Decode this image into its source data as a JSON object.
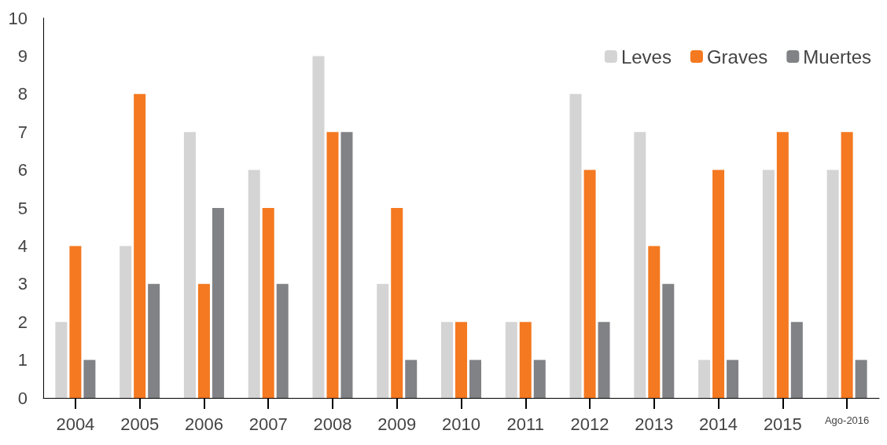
{
  "chart_data": {
    "type": "bar",
    "categories": [
      "2004",
      "2005",
      "2006",
      "2007",
      "2008",
      "2009",
      "2010",
      "2011",
      "2012",
      "2013",
      "2014",
      "2015",
      "Ago-2016"
    ],
    "series": [
      {
        "name": "Leves",
        "color": "#d4d4d5",
        "values": [
          2,
          4,
          7,
          6,
          9,
          3,
          2,
          2,
          8,
          7,
          1,
          6,
          6
        ]
      },
      {
        "name": "Graves",
        "color": "#f47920",
        "values": [
          4,
          8,
          3,
          5,
          7,
          5,
          2,
          2,
          6,
          4,
          6,
          7,
          7
        ]
      },
      {
        "name": "Muertes",
        "color": "#818285",
        "values": [
          1,
          3,
          5,
          3,
          7,
          1,
          1,
          1,
          2,
          3,
          1,
          2,
          1
        ]
      }
    ],
    "ylim": [
      0,
      10
    ],
    "yticks": [
      0,
      1,
      2,
      3,
      4,
      5,
      6,
      7,
      8,
      9,
      10
    ],
    "grid": false,
    "legend": "top right"
  }
}
